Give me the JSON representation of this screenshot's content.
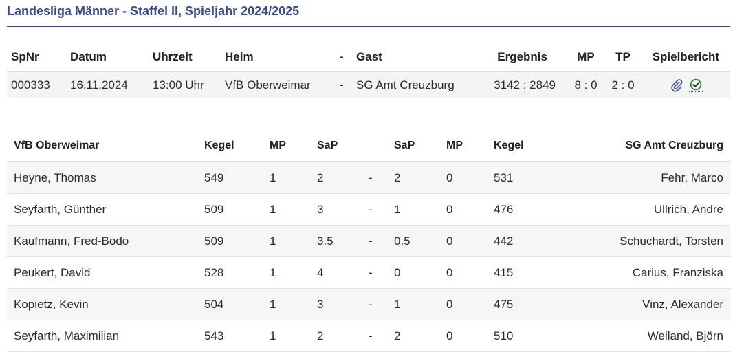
{
  "title": "Landesliga Männer - Staffel II, Spieljahr 2024/2025",
  "match_headers": {
    "spnr": "SpNr",
    "datum": "Datum",
    "uhrzeit": "Uhrzeit",
    "heim": "Heim",
    "dash": "-",
    "gast": "Gast",
    "ergebnis": "Ergebnis",
    "mp": "MP",
    "tp": "TP",
    "spielbericht": "Spielbericht"
  },
  "match": {
    "spnr": "000333",
    "datum": "16.11.2024",
    "uhrzeit": "13:00 Uhr",
    "heim": "VfB Oberweimar",
    "dash": "-",
    "gast": "SG Amt Creuzburg",
    "ergebnis": "3142 : 2849",
    "mp": "8 : 0",
    "tp": "2 : 0",
    "icons": [
      "paperclip-icon",
      "check-circle-icon"
    ]
  },
  "games_headers": {
    "home_team": "VfB Oberweimar",
    "kegel_home": "Kegel",
    "mp_home": "MP",
    "sap_home": "SaP",
    "sap_away": "SaP",
    "mp_away": "MP",
    "kegel_away": "Kegel",
    "away_team": "SG Amt Creuzburg"
  },
  "games": [
    {
      "home_player": "Heyne, Thomas",
      "kegel_home": "549",
      "mp_home": "1",
      "sap_home": "2",
      "dash": "-",
      "sap_away": "2",
      "mp_away": "0",
      "kegel_away": "531",
      "away_player": "Fehr, Marco"
    },
    {
      "home_player": "Seyfarth, Günther",
      "kegel_home": "509",
      "mp_home": "1",
      "sap_home": "3",
      "dash": "-",
      "sap_away": "1",
      "mp_away": "0",
      "kegel_away": "476",
      "away_player": "Ullrich, Andre"
    },
    {
      "home_player": "Kaufmann, Fred-Bodo",
      "kegel_home": "509",
      "mp_home": "1",
      "sap_home": "3.5",
      "dash": "-",
      "sap_away": "0.5",
      "mp_away": "0",
      "kegel_away": "442",
      "away_player": "Schuchardt, Torsten"
    },
    {
      "home_player": "Peukert, David",
      "kegel_home": "528",
      "mp_home": "1",
      "sap_home": "4",
      "dash": "-",
      "sap_away": "0",
      "mp_away": "0",
      "kegel_away": "415",
      "away_player": "Carius, Franziska"
    },
    {
      "home_player": "Kopietz, Kevin",
      "kegel_home": "504",
      "mp_home": "1",
      "sap_home": "3",
      "dash": "-",
      "sap_away": "1",
      "mp_away": "0",
      "kegel_away": "475",
      "away_player": "Vinz, Alexander"
    },
    {
      "home_player": "Seyfarth, Maximilian",
      "kegel_home": "543",
      "mp_home": "1",
      "sap_home": "2",
      "dash": "-",
      "sap_away": "2",
      "mp_away": "0",
      "kegel_away": "510",
      "away_player": "Weiland, Björn"
    }
  ],
  "colors": {
    "accent": "#3c4a8a",
    "link": "#2f3d86",
    "check": "#2e8b2e"
  }
}
